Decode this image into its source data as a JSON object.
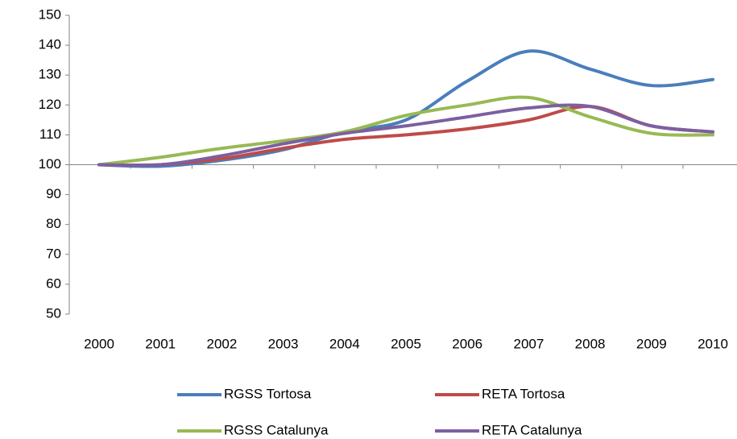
{
  "chart_data": {
    "type": "line",
    "categories": [
      "2000",
      "2001",
      "2002",
      "2003",
      "2004",
      "2005",
      "2006",
      "2007",
      "2008",
      "2009",
      "2010"
    ],
    "series": [
      {
        "name": "RGSS Tortosa",
        "color": "#4a7ebb",
        "values": [
          100,
          99.5,
          101.5,
          105,
          111,
          115,
          128,
          138,
          132,
          126.5,
          128.5
        ]
      },
      {
        "name": "RETA Tortosa",
        "color": "#be4b48",
        "values": [
          100,
          100,
          102,
          105.5,
          108.5,
          110,
          112,
          115,
          119.5,
          113,
          111
        ]
      },
      {
        "name": "RGSS Catalunya",
        "color": "#98b954",
        "values": [
          100,
          102.5,
          105.5,
          108,
          111,
          116.5,
          120,
          122.5,
          116,
          110.5,
          110
        ]
      },
      {
        "name": "RETA Catalunya",
        "color": "#7d5fa0",
        "values": [
          100,
          100,
          103,
          107,
          110.5,
          113,
          116,
          119,
          119.5,
          113,
          111
        ]
      }
    ],
    "ylim": [
      50,
      150
    ],
    "yticks": [
      50,
      60,
      70,
      80,
      90,
      100,
      110,
      120,
      130,
      140,
      150
    ],
    "x_axis_crosses": 100,
    "legend": "bottom"
  }
}
